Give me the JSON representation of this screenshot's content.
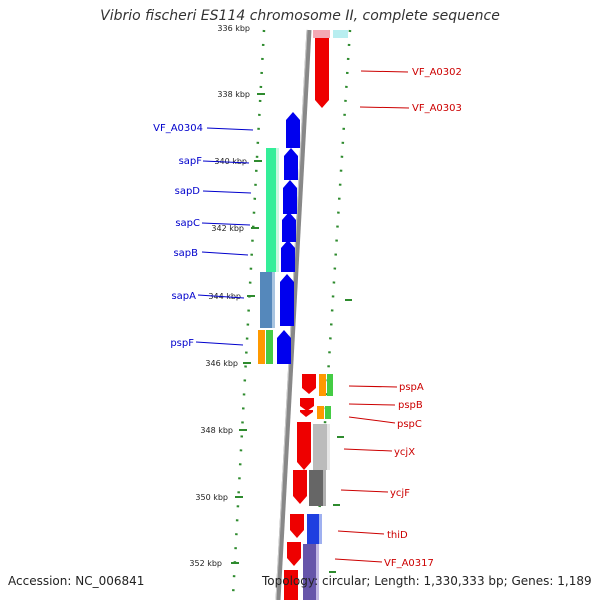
{
  "title": "Vibrio fischeri ES114 chromosome II, complete sequence",
  "accession": "Accession: NC_006841",
  "topology": "Topology: circular; Length: 1,330,333 bp; Genes: 1,189",
  "scale_labels": [
    "336 kbp",
    "338 kbp",
    "340 kbp",
    "342 kbp",
    "344 kbp",
    "346 kbp",
    "348 kbp",
    "350 kbp",
    "352 kbp"
  ],
  "genes_left": [
    "VF_A0304",
    "sapF",
    "sapD",
    "sapC",
    "sapB",
    "sapA",
    "pspF"
  ],
  "genes_right": [
    "VF_A0302",
    "VF_A0303",
    "pspA",
    "pspB",
    "pspC",
    "ycjX",
    "ycjF",
    "thiD",
    "VF_A0317"
  ],
  "colors": {
    "forward": "#0000ee",
    "reverse": "#ee0000",
    "backbone": "#808080",
    "scale": "#2e8b2e",
    "label_left": "#0000cc",
    "label_right": "#cc0000"
  }
}
